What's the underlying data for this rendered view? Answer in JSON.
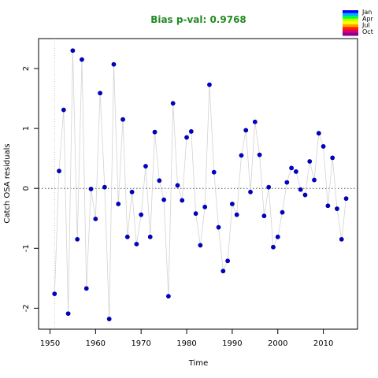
{
  "chart_data": {
    "type": "scatter",
    "title": "Bias p-val: 0.9768",
    "xlabel": "Time",
    "ylabel": "Catch OSA residuals",
    "xlim": [
      1947.5,
      2017.5
    ],
    "ylim": [
      -2.35,
      2.5
    ],
    "xticks": [
      1950,
      1960,
      1970,
      1980,
      1990,
      2000,
      2010
    ],
    "yticks": [
      -2,
      -1,
      0,
      1,
      2
    ],
    "reference_line_y": 0,
    "reference_line_x": 1951,
    "grid": false,
    "legend": {
      "placement": "top-right",
      "entries": [
        "Jan",
        "Apr",
        "Jul",
        "Oct"
      ]
    },
    "colors": {
      "title": "#228B22",
      "points": "#0000CD",
      "point_edge": "#00008B",
      "connect_line": "#d3d3d3",
      "ref_line": "#555555",
      "legend_gradient": [
        "#0000ff",
        "#00b0ff",
        "#00ff40",
        "#c8ff00",
        "#ffff00",
        "#ffa000",
        "#ff2000",
        "#e0006a",
        "#8b0090"
      ]
    },
    "series": [
      {
        "x": [
          1951,
          1952,
          1953,
          1954,
          1955,
          1956,
          1957,
          1958,
          1959,
          1960,
          1961,
          1962,
          1963,
          1964,
          1965,
          1966,
          1967,
          1968,
          1969,
          1970,
          1971,
          1972,
          1973,
          1974,
          1975,
          1976,
          1977,
          1978,
          1979,
          1980,
          1981,
          1982,
          1983,
          1984,
          1985,
          1986,
          1987,
          1988,
          1989,
          1990,
          1991,
          1992,
          1993,
          1994,
          1995,
          1996,
          1997,
          1998,
          1999,
          2000,
          2001,
          2002,
          2003,
          2004,
          2005,
          2006,
          2007,
          2008,
          2009,
          2010,
          2011,
          2012,
          2013,
          2014,
          2015
        ],
        "values": [
          -1.76,
          0.29,
          1.31,
          -2.09,
          2.3,
          -0.85,
          2.15,
          -1.67,
          -0.01,
          -0.51,
          1.59,
          0.02,
          -2.18,
          2.07,
          -0.26,
          1.15,
          -0.81,
          -0.06,
          -0.93,
          -0.44,
          0.37,
          -0.81,
          0.94,
          0.13,
          -0.19,
          -1.8,
          1.42,
          0.05,
          -0.2,
          0.85,
          0.95,
          -0.42,
          -0.95,
          -0.31,
          1.73,
          0.27,
          -0.65,
          -1.38,
          -1.21,
          -0.26,
          -0.44,
          0.55,
          0.97,
          -0.06,
          1.11,
          0.56,
          -0.46,
          0.02,
          -0.98,
          -0.81,
          -0.4,
          0.1,
          0.34,
          0.28,
          -0.02,
          -0.11,
          0.45,
          0.14,
          0.92,
          0.7,
          -0.29,
          0.51,
          -0.34,
          -0.85,
          -0.17
        ]
      }
    ]
  }
}
